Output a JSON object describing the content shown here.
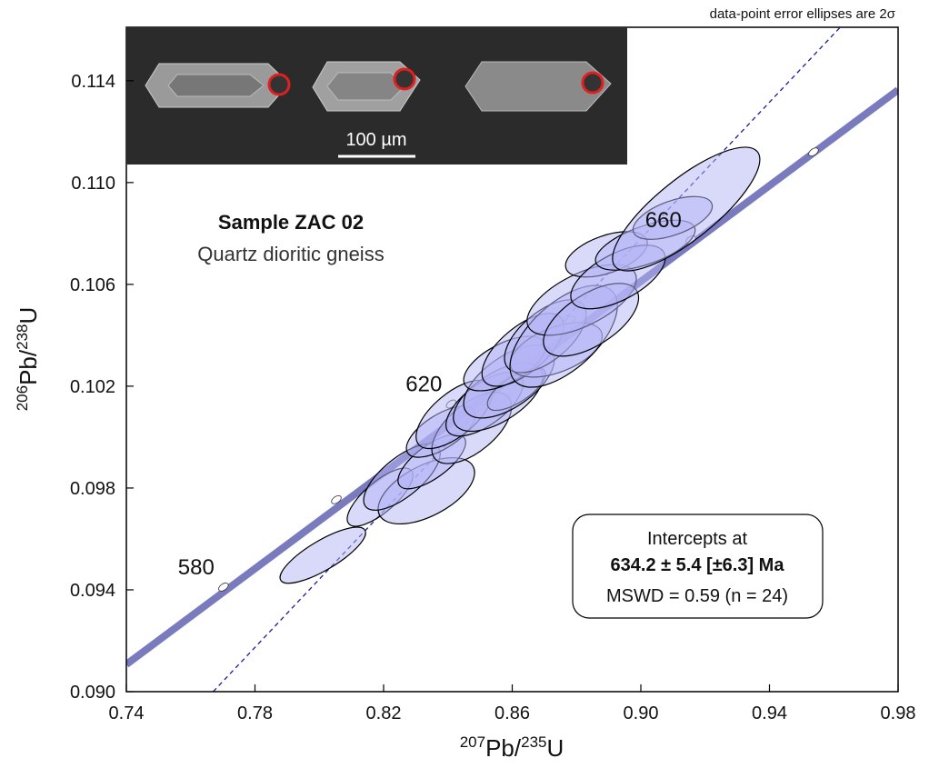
{
  "chart_data": {
    "type": "concordia",
    "note": "data-point error ellipses are 2σ",
    "sample_title": "Sample ZAC 02",
    "sample_subtitle": "Quartz dioritic gneiss",
    "x_label": [
      "207",
      "Pb/",
      "235",
      "U"
    ],
    "y_label": [
      "206",
      "Pb/",
      "238",
      "U"
    ],
    "xlim": [
      0.74,
      0.98
    ],
    "ylim": [
      0.09,
      0.1161
    ],
    "xticks": [
      0.74,
      0.78,
      0.82,
      0.86,
      {
        "value": 0.9,
        "label": "0.90"
      },
      0.94,
      0.98
    ],
    "yticks": [
      {
        "value": 0.09,
        "label": "0.090"
      },
      0.094,
      0.098,
      0.102,
      0.106,
      {
        "value": 0.11,
        "label": "0.110"
      },
      0.114
    ],
    "grid": false,
    "scale_bar_label": "100 µm",
    "concordia": {
      "color": "#7a7abf",
      "x": [
        0.74,
        0.98
      ],
      "y": [
        0.09107,
        0.11364
      ]
    },
    "discordia": {
      "color": "#1a1aa0",
      "x": [
        0.767,
        0.962
      ],
      "y": [
        0.09,
        0.1161
      ]
    },
    "age_markers": {
      "labels": [
        580,
        null,
        620,
        null,
        660,
        null
      ],
      "x": [
        0.7702,
        0.8053,
        0.841,
        0.878,
        0.9155,
        0.9537
      ],
      "y": [
        0.09411,
        0.09754,
        0.1013,
        0.1046,
        0.10775,
        0.1112
      ]
    },
    "ellipses": {
      "color": "#b4b4f5",
      "x": [
        0.8011,
        0.8189,
        0.8333,
        0.8257,
        0.835,
        0.8378,
        0.8474,
        0.842,
        0.8514,
        0.8556,
        0.8613,
        0.859,
        0.8576,
        0.8633,
        0.8737,
        0.8703,
        0.876,
        0.8816,
        0.8845,
        0.8893,
        0.8929,
        0.9014,
        0.9099,
        0.9141
      ],
      "y": [
        0.09536,
        0.09764,
        0.09789,
        0.09843,
        0.09904,
        0.10021,
        0.10036,
        0.10089,
        0.10129,
        0.10157,
        0.10189,
        0.10218,
        0.10289,
        0.10343,
        0.10343,
        0.10396,
        0.10396,
        0.10539,
        0.10461,
        0.10718,
        0.10629,
        0.10754,
        0.10861,
        0.10896
      ],
      "x_err": [
        0.0133,
        0.0102,
        0.015,
        0.0119,
        0.0105,
        0.0107,
        0.0124,
        0.0119,
        0.012,
        0.0139,
        0.009,
        0.0141,
        0.0127,
        0.0127,
        0.0143,
        0.0127,
        0.0167,
        0.017,
        0.0148,
        0.0127,
        0.0147,
        0.0155,
        0.0123,
        0.0229
      ],
      "y_err": [
        0.0011,
        0.00114,
        0.0013,
        0.0013,
        0.00107,
        0.001,
        0.0014,
        0.00134,
        0.00125,
        0.00134,
        0.00084,
        0.00143,
        0.00107,
        0.00143,
        0.00107,
        0.00143,
        0.002,
        0.00139,
        0.00143,
        0.00089,
        0.00125,
        0.00098,
        0.00084,
        0.00243
      ],
      "rho": [
        0.8,
        0.75,
        0.55,
        0.7,
        0.7,
        0.65,
        0.6,
        0.65,
        0.65,
        0.6,
        0.7,
        0.6,
        0.6,
        0.65,
        0.5,
        0.6,
        0.6,
        0.6,
        0.6,
        0.5,
        0.6,
        0.6,
        0.55,
        0.8
      ]
    },
    "result_box": [
      "Intercepts at",
      "634.2 ± 5.4 [±6.3] Ma",
      "MSWD = 0.59 (n = 24)"
    ]
  }
}
